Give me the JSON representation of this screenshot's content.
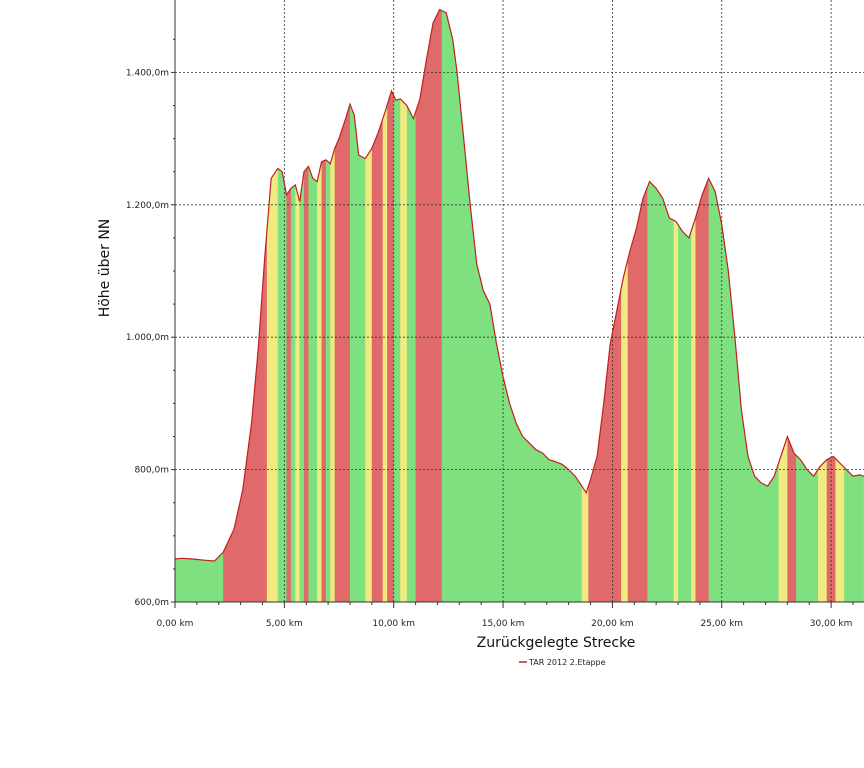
{
  "chart_data": {
    "type": "area",
    "title": "",
    "xlabel": "Zurückgelegte Strecke",
    "ylabel": "Höhe über NN",
    "xlim": [
      0,
      31.5
    ],
    "ylim": [
      600,
      1500
    ],
    "grid": true,
    "legend_position": "bottom-center",
    "x_ticks": [
      {
        "value": 0,
        "label": "0,00 km"
      },
      {
        "value": 5,
        "label": "5,00 km"
      },
      {
        "value": 10,
        "label": "10,00 km"
      },
      {
        "value": 15,
        "label": "15,00 km"
      },
      {
        "value": 20,
        "label": "20,00 km"
      },
      {
        "value": 25,
        "label": "25,00 km"
      },
      {
        "value": 30,
        "label": "30,00 km"
      }
    ],
    "y_ticks": [
      {
        "value": 600,
        "label": "600,0m"
      },
      {
        "value": 800,
        "label": "800,0m"
      },
      {
        "value": 1000,
        "label": "1.000,0m"
      },
      {
        "value": 1200,
        "label": "1.200,0m"
      },
      {
        "value": 1400,
        "label": "1.400,0m"
      }
    ],
    "series": [
      {
        "name": "TAR 2012 2.Etappe",
        "color": "#cc2222",
        "x": [
          0,
          0.3,
          0.8,
          1.4,
          1.8,
          2.2,
          2.7,
          3.1,
          3.5,
          3.8,
          4.1,
          4.4,
          4.7,
          4.9,
          5.1,
          5.3,
          5.5,
          5.7,
          5.9,
          6.1,
          6.3,
          6.5,
          6.7,
          6.9,
          7.1,
          7.3,
          7.5,
          7.8,
          8.0,
          8.2,
          8.4,
          8.7,
          9.0,
          9.3,
          9.6,
          9.9,
          10.1,
          10.3,
          10.6,
          10.9,
          11.2,
          11.5,
          11.8,
          12.1,
          12.4,
          12.7,
          12.9,
          13.2,
          13.5,
          13.8,
          14.1,
          14.4,
          14.7,
          15.0,
          15.3,
          15.6,
          15.9,
          16.2,
          16.5,
          16.8,
          17.1,
          17.4,
          17.7,
          18.0,
          18.3,
          18.6,
          18.8,
          19.0,
          19.3,
          19.6,
          19.9,
          20.2,
          20.5,
          20.8,
          21.1,
          21.4,
          21.7,
          22.0,
          22.3,
          22.6,
          22.9,
          23.2,
          23.5,
          23.8,
          24.1,
          24.4,
          24.7,
          25.0,
          25.3,
          25.6,
          25.9,
          26.2,
          26.5,
          26.8,
          27.1,
          27.4,
          27.7,
          28.0,
          28.3,
          28.6,
          28.9,
          29.2,
          29.5,
          29.8,
          30.1,
          30.4,
          30.7,
          31.0,
          31.3,
          31.5
        ],
        "y": [
          665,
          666,
          665,
          663,
          662,
          675,
          710,
          770,
          870,
          980,
          1120,
          1240,
          1255,
          1250,
          1215,
          1225,
          1230,
          1205,
          1250,
          1258,
          1240,
          1235,
          1265,
          1268,
          1262,
          1285,
          1300,
          1330,
          1352,
          1335,
          1275,
          1270,
          1285,
          1310,
          1340,
          1372,
          1358,
          1360,
          1350,
          1330,
          1360,
          1420,
          1475,
          1495,
          1490,
          1450,
          1400,
          1300,
          1200,
          1110,
          1070,
          1050,
          990,
          940,
          900,
          870,
          850,
          840,
          830,
          825,
          815,
          812,
          808,
          800,
          790,
          775,
          765,
          785,
          820,
          900,
          990,
          1040,
          1090,
          1130,
          1165,
          1210,
          1235,
          1225,
          1210,
          1180,
          1175,
          1160,
          1150,
          1180,
          1215,
          1240,
          1220,
          1170,
          1100,
          1000,
          890,
          820,
          790,
          780,
          775,
          790,
          820,
          850,
          825,
          815,
          800,
          790,
          805,
          815,
          820,
          810,
          800,
          790,
          792,
          790
        ]
      }
    ],
    "gradient_bands": [
      {
        "start": 0.0,
        "end": 2.2,
        "level": "flat"
      },
      {
        "start": 2.2,
        "end": 4.2,
        "level": "steep"
      },
      {
        "start": 4.2,
        "end": 4.7,
        "level": "moderate"
      },
      {
        "start": 4.7,
        "end": 5.1,
        "level": "flat"
      },
      {
        "start": 5.1,
        "end": 5.3,
        "level": "steep"
      },
      {
        "start": 5.3,
        "end": 5.5,
        "level": "flat"
      },
      {
        "start": 5.5,
        "end": 5.7,
        "level": "moderate"
      },
      {
        "start": 5.7,
        "end": 5.9,
        "level": "flat"
      },
      {
        "start": 5.9,
        "end": 6.1,
        "level": "steep"
      },
      {
        "start": 6.1,
        "end": 6.5,
        "level": "flat"
      },
      {
        "start": 6.5,
        "end": 6.7,
        "level": "moderate"
      },
      {
        "start": 6.7,
        "end": 6.9,
        "level": "steep"
      },
      {
        "start": 6.9,
        "end": 7.1,
        "level": "flat"
      },
      {
        "start": 7.1,
        "end": 7.3,
        "level": "moderate"
      },
      {
        "start": 7.3,
        "end": 8.0,
        "level": "steep"
      },
      {
        "start": 8.0,
        "end": 8.7,
        "level": "flat"
      },
      {
        "start": 8.7,
        "end": 9.0,
        "level": "moderate"
      },
      {
        "start": 9.0,
        "end": 9.5,
        "level": "steep"
      },
      {
        "start": 9.5,
        "end": 9.7,
        "level": "moderate"
      },
      {
        "start": 9.7,
        "end": 10.0,
        "level": "steep"
      },
      {
        "start": 10.0,
        "end": 10.3,
        "level": "flat"
      },
      {
        "start": 10.3,
        "end": 10.6,
        "level": "moderate"
      },
      {
        "start": 10.6,
        "end": 11.0,
        "level": "flat"
      },
      {
        "start": 11.0,
        "end": 12.2,
        "level": "steep"
      },
      {
        "start": 12.2,
        "end": 18.6,
        "level": "flat"
      },
      {
        "start": 18.6,
        "end": 18.9,
        "level": "moderate"
      },
      {
        "start": 18.9,
        "end": 20.4,
        "level": "steep"
      },
      {
        "start": 20.4,
        "end": 20.7,
        "level": "moderate"
      },
      {
        "start": 20.7,
        "end": 21.6,
        "level": "steep"
      },
      {
        "start": 21.6,
        "end": 22.8,
        "level": "flat"
      },
      {
        "start": 22.8,
        "end": 23.0,
        "level": "moderate"
      },
      {
        "start": 23.0,
        "end": 23.6,
        "level": "flat"
      },
      {
        "start": 23.6,
        "end": 23.8,
        "level": "moderate"
      },
      {
        "start": 23.8,
        "end": 24.4,
        "level": "steep"
      },
      {
        "start": 24.4,
        "end": 27.6,
        "level": "flat"
      },
      {
        "start": 27.6,
        "end": 28.0,
        "level": "moderate"
      },
      {
        "start": 28.0,
        "end": 28.4,
        "level": "steep"
      },
      {
        "start": 28.4,
        "end": 29.4,
        "level": "flat"
      },
      {
        "start": 29.4,
        "end": 29.8,
        "level": "moderate"
      },
      {
        "start": 29.8,
        "end": 30.2,
        "level": "steep"
      },
      {
        "start": 30.2,
        "end": 30.6,
        "level": "moderate"
      },
      {
        "start": 30.6,
        "end": 31.5,
        "level": "flat"
      }
    ],
    "band_colors": {
      "flat": "#7ee07e",
      "moderate": "#f0ea80",
      "steep": "#e06a6a"
    },
    "line_color": "#c02020",
    "grid_color": "#333333"
  }
}
